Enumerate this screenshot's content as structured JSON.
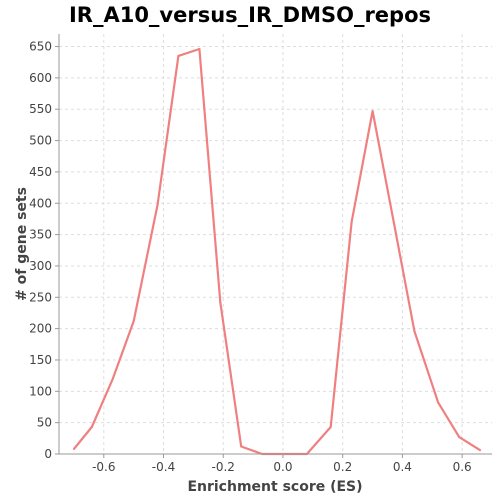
{
  "chart_data": {
    "type": "line",
    "title": "IR_A10_versus_IR_DMSO_repos",
    "xlabel": "Enrichment score (ES)",
    "ylabel": "# of gene sets",
    "xlim": [
      -0.75,
      0.7
    ],
    "ylim": [
      0,
      670
    ],
    "x_ticks": [
      -0.6,
      -0.4,
      -0.2,
      0.0,
      0.2,
      0.4,
      0.6
    ],
    "x_tick_labels": [
      "-0.6",
      "-0.4",
      "-0.2",
      "0.0",
      "0.2",
      "0.4",
      "0.6"
    ],
    "y_ticks": [
      0,
      50,
      100,
      150,
      200,
      250,
      300,
      350,
      400,
      450,
      500,
      550,
      600,
      650
    ],
    "grid": true,
    "series": [
      {
        "color": "#f08080",
        "x": [
          -0.7,
          -0.64,
          -0.57,
          -0.5,
          -0.42,
          -0.35,
          -0.28,
          -0.21,
          -0.14,
          -0.07,
          0.01,
          0.08,
          0.16,
          0.23,
          0.3,
          0.37,
          0.44,
          0.52,
          0.59,
          0.66
        ],
        "y": [
          8,
          43,
          120,
          212,
          397,
          635,
          646,
          242,
          12,
          0,
          0,
          0,
          43,
          370,
          547,
          372,
          196,
          82,
          27,
          6
        ]
      }
    ]
  }
}
